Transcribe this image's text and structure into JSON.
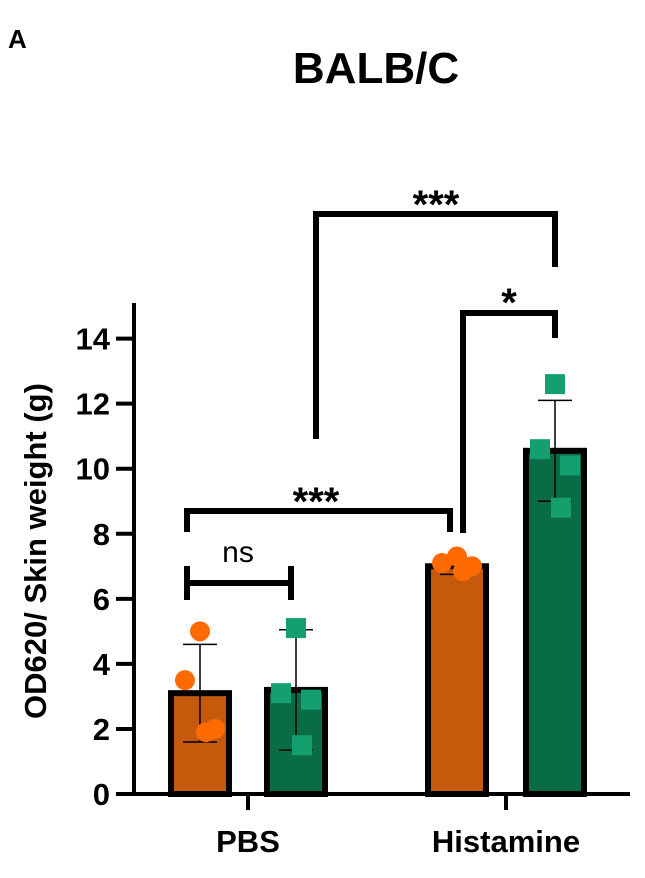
{
  "panel_label": "A",
  "chart_data": {
    "type": "bar",
    "title": "BALB/C",
    "xlabel": "",
    "ylabel": "OD620/ Skin weight (g)",
    "ylim": [
      0,
      15
    ],
    "yticks": [
      0,
      2,
      4,
      6,
      8,
      10,
      12,
      14
    ],
    "grid": false,
    "legend": "none",
    "categories": [
      "PBS",
      "Histamine"
    ],
    "series": [
      {
        "color": "#c55a0c",
        "point_color": "#ff6a00",
        "point_shape": "circle",
        "values": [
          3.1,
          7.0
        ],
        "sd": [
          1.5,
          0.25
        ],
        "points": [
          [
            5.0,
            3.5,
            2.0,
            1.9
          ],
          [
            7.3,
            7.1,
            7.0,
            6.85
          ]
        ]
      },
      {
        "color": "#0a6b47",
        "point_color": "#13a06e",
        "point_shape": "square",
        "values": [
          3.2,
          10.55
        ],
        "sd": [
          1.85,
          1.55
        ],
        "points": [
          [
            5.1,
            3.1,
            2.9,
            1.5
          ],
          [
            12.6,
            10.6,
            10.1,
            8.8
          ]
        ]
      }
    ],
    "annotations": [
      {
        "label": "ns",
        "from": [
          0,
          0
        ],
        "to": [
          0,
          1
        ]
      },
      {
        "label": "***",
        "from": [
          0,
          0
        ],
        "to": [
          1,
          0
        ]
      },
      {
        "label": "*",
        "from": [
          1,
          0
        ],
        "to": [
          1,
          1
        ]
      },
      {
        "label": "***",
        "from": [
          0,
          0.5
        ],
        "to": [
          1,
          1
        ]
      }
    ]
  }
}
